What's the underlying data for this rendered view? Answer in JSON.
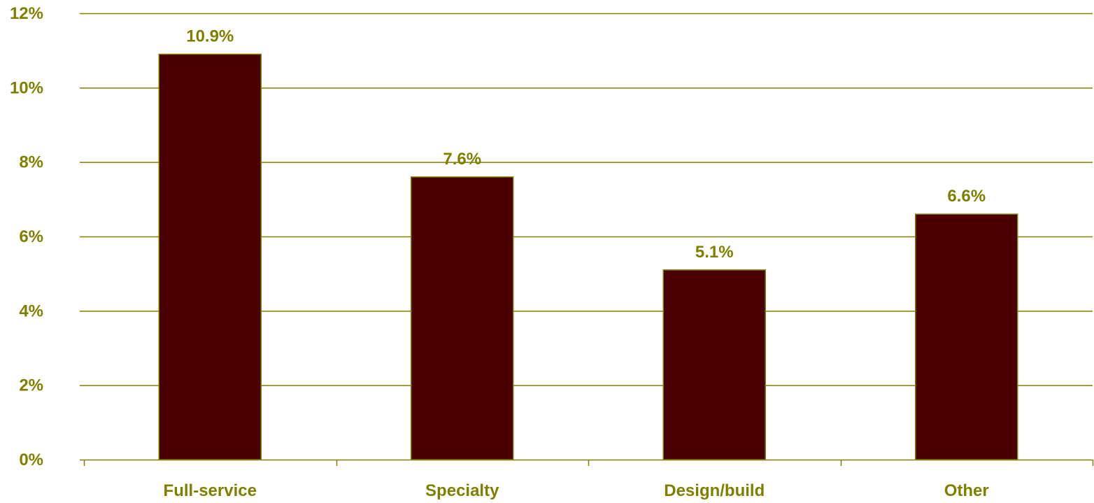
{
  "chart_data": {
    "type": "bar",
    "title": "",
    "xlabel": "",
    "ylabel": "",
    "categories": [
      "Full-service",
      "Specialty",
      "Design/build",
      "Other"
    ],
    "values": [
      10.9,
      7.6,
      5.1,
      6.6
    ],
    "data_labels": [
      "10.9%",
      "7.6%",
      "5.1%",
      "6.6%"
    ],
    "ylim": [
      0,
      12
    ],
    "y_ticks": [
      0,
      2,
      4,
      6,
      8,
      10,
      12
    ],
    "y_tick_labels": [
      "0%",
      "2%",
      "4%",
      "6%",
      "8%",
      "10%",
      "12%"
    ],
    "grid": true,
    "legend": "none",
    "colors": {
      "bar_fill": "#4a0000",
      "bar_stroke": "#808000",
      "text": "#808000",
      "grid": "#808000"
    }
  }
}
